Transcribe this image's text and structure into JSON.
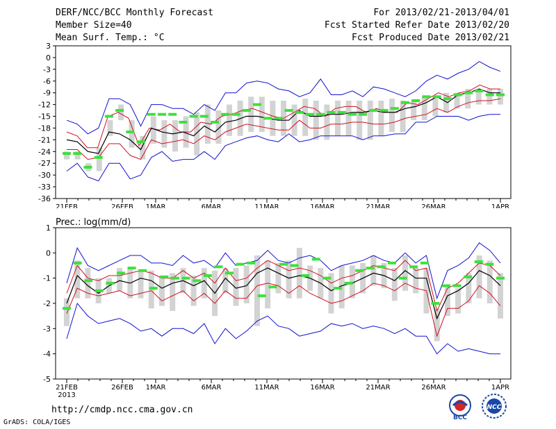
{
  "header": {
    "title": "DERF/NCC/BCC Monthly Forecast",
    "member_size": "Member Size=40",
    "variable": "Mean Surf. Temp.: °C",
    "period": "For 2013/02/21-2013/04/01",
    "started": "Fcst Started Refer Date 2013/02/20",
    "produced": "Fcst Produced Date 2013/02/21"
  },
  "footer": {
    "url": "http://cmdp.ncc.cma.gov.cn",
    "credit": "GrADS: COLA/IGES",
    "logo_bcc": "BCC",
    "logo_ncc": "NCC"
  },
  "colors": {
    "max_min": "#1010d0",
    "spread": "#d01020",
    "ensemble_mean": "#000000",
    "box": "#d3d3d3",
    "marker": "#3ce13c"
  },
  "chart_data": [
    {
      "type": "line",
      "title": "Mean Surf. Temp.: °C",
      "xlabel": "",
      "ylabel": "°C",
      "ylim": [
        -36,
        3
      ],
      "yticks": [
        3,
        0,
        -3,
        -6,
        -9,
        -12,
        -15,
        -18,
        -21,
        -24,
        -27,
        -30,
        -33,
        -36
      ],
      "x_tick_days": [
        1,
        6,
        9,
        14,
        19,
        24,
        29,
        34,
        40
      ],
      "x_tick_labels": [
        "21FEB",
        "26FEB",
        "1MAR",
        "6MAR",
        "11MAR",
        "16MAR",
        "21MAR",
        "26MAR",
        "1APR"
      ],
      "x_year_label": "2013",
      "days": 40,
      "series": [
        {
          "name": "max",
          "values": [
            -16,
            -17,
            -19.5,
            -18,
            -10.5,
            -10.5,
            -12,
            -17.5,
            -12,
            -12,
            -13,
            -13,
            -14.5,
            -12,
            -13.5,
            -9,
            -9,
            -6.5,
            -6,
            -6.5,
            -8,
            -8.5,
            -10,
            -9,
            -5.5,
            -9.5,
            -9.5,
            -8.5,
            -10,
            -7.5,
            -8,
            -9,
            -10,
            -8.5,
            -6,
            -4.5,
            -5.5,
            -4,
            -3,
            -1,
            -2.5,
            -3.5
          ]
        },
        {
          "name": "spread_upper",
          "values": [
            -19,
            -20,
            -23,
            -23,
            -15,
            -14,
            -15.5,
            -22.5,
            -18,
            -18.5,
            -17,
            -19,
            -19,
            -16.5,
            -17,
            -15,
            -14.5,
            -13.5,
            -13,
            -14,
            -15,
            -15.5,
            -14,
            -12.5,
            -13,
            -15,
            -13,
            -12.5,
            -12.5,
            -14,
            -13,
            -14,
            -14,
            -11.5,
            -12,
            -10.5,
            -9,
            -10,
            -9,
            -8.5,
            -7,
            -8,
            -8
          ]
        },
        {
          "name": "mean",
          "values": [
            -21,
            -21.5,
            -24,
            -24.5,
            -19,
            -19.5,
            -21,
            -23.5,
            -18,
            -19,
            -19.5,
            -19,
            -20,
            -17.5,
            -19,
            -16.5,
            -16,
            -15,
            -15,
            -15.5,
            -16,
            -16,
            -13.5,
            -15,
            -15,
            -14.5,
            -14.5,
            -14,
            -14,
            -13.5,
            -14,
            -14,
            -13,
            -12.5,
            -11.5,
            -10,
            -11.5,
            -9.5,
            -9,
            -8,
            -9,
            -9
          ]
        },
        {
          "name": "spread_lower",
          "values": [
            -23.5,
            -23.5,
            -26,
            -25.5,
            -22,
            -22,
            -25,
            -26,
            -21,
            -22,
            -21.5,
            -21,
            -22,
            -20,
            -21,
            -19,
            -18,
            -17,
            -17.5,
            -18,
            -18.5,
            -18.5,
            -16,
            -18,
            -18,
            -17,
            -17,
            -16.5,
            -16.5,
            -17,
            -17,
            -16.5,
            -15.5,
            -15,
            -14.5,
            -13,
            -14,
            -12.5,
            -11.5,
            -11,
            -11,
            -10.5
          ]
        },
        {
          "name": "min",
          "values": [
            -29,
            -27,
            -30.5,
            -31.5,
            -27,
            -27,
            -31,
            -30,
            -25.5,
            -24,
            -26.5,
            -26,
            -26,
            -24,
            -26,
            -22.5,
            -21.5,
            -20.5,
            -20,
            -21,
            -21.5,
            -19.5,
            -21.5,
            -21,
            -20,
            -20,
            -20,
            -20,
            -21,
            -20,
            -20,
            -19.5,
            -19.5,
            -16.5,
            -16.5,
            -15,
            -15,
            -15,
            -16,
            -15,
            -14.5,
            -14.5
          ]
        },
        {
          "name": "marker",
          "values": [
            -24.5,
            -24.5,
            -28,
            -25.5,
            -15,
            -13.5,
            -19,
            -21.5,
            -14.5,
            -14.5,
            -14.5,
            -16.5,
            -15,
            -15,
            -16.5,
            -14.5,
            -14.5,
            -13.5,
            -12,
            -15.5,
            -15.5,
            -13.5,
            -14,
            -14.5,
            -14.5,
            -14,
            -14,
            -14.5,
            -14.5,
            -13.5,
            -13.5,
            -13,
            -11.5,
            -11,
            -10,
            -10,
            -10.5,
            -9.5,
            -9,
            -8.5,
            -9.5,
            -9.5
          ]
        },
        {
          "name": "box_top",
          "values": [
            -24,
            -24,
            -27,
            -23,
            -16,
            -12,
            -16,
            -20,
            -15,
            -16,
            -16,
            -15,
            -14,
            -12,
            -13.5,
            -12,
            -11,
            -10,
            -10,
            -11,
            -11,
            -12,
            -10.5,
            -11,
            -12,
            -11,
            -11,
            -11,
            -11,
            -11,
            -10.5,
            -11,
            -11,
            -10,
            -10,
            -9,
            -9,
            -8,
            -8,
            -8,
            -8
          ]
        },
        {
          "name": "box_bottom",
          "values": [
            -26,
            -26,
            -29,
            -29,
            -20,
            -16,
            -23,
            -26,
            -22,
            -23,
            -24,
            -23,
            -25,
            -22,
            -22,
            -20,
            -20,
            -19,
            -19,
            -20,
            -20,
            -20,
            -20,
            -21,
            -21,
            -20,
            -20,
            -21,
            -21,
            -20,
            -19,
            -19,
            -16,
            -16,
            -15,
            -14,
            -13,
            -13,
            -12,
            -12,
            -12
          ]
        }
      ]
    },
    {
      "type": "line",
      "title": "Prec.: log(mm/d)",
      "xlabel": "",
      "ylabel": "log(mm/d)",
      "ylim": [
        -5,
        1
      ],
      "yticks": [
        1,
        0,
        -1,
        -2,
        -3,
        -4,
        -5
      ],
      "x_tick_days": [
        1,
        6,
        9,
        14,
        19,
        24,
        29,
        34,
        40
      ],
      "x_tick_labels": [
        "21FEB",
        "26FEB",
        "1MAR",
        "6MAR",
        "11MAR",
        "16MAR",
        "21MAR",
        "26MAR",
        "1APR"
      ],
      "x_year_label": "2013",
      "days": 40,
      "series": [
        {
          "name": "max",
          "values": [
            -1.2,
            0.2,
            -0.5,
            -0.7,
            -0.5,
            -0.3,
            -0.1,
            -0.1,
            -0.4,
            -0.4,
            -0.5,
            -0.1,
            -0.4,
            -0.3,
            -0.6,
            0,
            -0.5,
            -0.4,
            -0.3,
            0.1,
            -0.3,
            -0.4,
            -0.2,
            -0.1,
            -0.3,
            -0.7,
            -0.5,
            -0.4,
            -0.3,
            -0.1,
            -0.3,
            -0.4,
            0,
            -0.4,
            -0.1,
            -1.8,
            -0.7,
            -0.5,
            -0.2,
            0.4,
            0.1,
            -0.4
          ]
        },
        {
          "name": "spread_upper",
          "values": [
            -1.6,
            -0.5,
            -1,
            -1.1,
            -0.9,
            -0.9,
            -0.8,
            -0.7,
            -0.8,
            -1,
            -1,
            -0.7,
            -1,
            -0.8,
            -1.2,
            -0.6,
            -1.1,
            -1,
            -0.6,
            -0.3,
            -0.5,
            -0.7,
            -0.6,
            -0.7,
            -0.9,
            -1.2,
            -1,
            -0.9,
            -0.7,
            -0.5,
            -0.6,
            -0.7,
            -0.3,
            -0.7,
            -0.6,
            -2.3,
            -1.4,
            -1.2,
            -0.8,
            -0.4,
            -0.5,
            -0.9
          ]
        },
        {
          "name": "mean",
          "values": [
            -2,
            -0.9,
            -1.3,
            -1.6,
            -1.3,
            -1.1,
            -1.2,
            -1,
            -1.1,
            -1.4,
            -1.2,
            -1.1,
            -1.3,
            -1.1,
            -1.6,
            -1,
            -1.4,
            -1.3,
            -0.8,
            -0.6,
            -0.8,
            -1,
            -0.9,
            -1,
            -1.2,
            -1.5,
            -1.3,
            -1.2,
            -1,
            -0.8,
            -0.9,
            -1.1,
            -0.7,
            -1,
            -1,
            -2.6,
            -1.7,
            -1.5,
            -1.2,
            -0.7,
            -0.9,
            -1.3
          ]
        },
        {
          "name": "spread_lower",
          "values": [
            -2.4,
            -1.4,
            -1.6,
            -1.7,
            -1.6,
            -1.5,
            -1.7,
            -1.6,
            -1.5,
            -1.9,
            -1.7,
            -1.5,
            -1.9,
            -1.6,
            -2,
            -1.5,
            -1.8,
            -1.8,
            -1.3,
            -1.2,
            -1.3,
            -1.6,
            -1.3,
            -1.6,
            -1.8,
            -2,
            -1.9,
            -1.7,
            -1.5,
            -1.2,
            -1.3,
            -1.5,
            -1.2,
            -1.4,
            -1.5,
            -3.3,
            -2.2,
            -2.2,
            -1.9,
            -1.3,
            -1.6,
            -2.1
          ]
        },
        {
          "name": "min",
          "values": [
            -3.4,
            -2,
            -2.5,
            -2.8,
            -2.7,
            -2.6,
            -2.8,
            -3.1,
            -3,
            -3.3,
            -3,
            -3,
            -3.2,
            -2.8,
            -3.6,
            -3,
            -3.4,
            -3.1,
            -2.7,
            -2.5,
            -2.9,
            -3,
            -3.3,
            -3.2,
            -3.1,
            -2.8,
            -2.9,
            -2.8,
            -3,
            -2.9,
            -3,
            -3.2,
            -3,
            -3.3,
            -3.3,
            -4,
            -3.6,
            -3.9,
            -3.8,
            -3.9,
            -4,
            -4
          ]
        },
        {
          "name": "marker",
          "values": [
            -2.2,
            -0.4,
            -1.1,
            -1.5,
            -1.2,
            -0.8,
            -0.6,
            -0.7,
            -1.4,
            -0.95,
            -1,
            -1,
            -1.1,
            -0.9,
            -0.55,
            -0.8,
            -0.45,
            -0.4,
            -1.7,
            -1.35,
            -0.45,
            -0.5,
            -0.9,
            -0.25,
            -1,
            -1.4,
            -1.2,
            -0.7,
            -0.6,
            -0.55,
            -0.4,
            -1,
            -0.55,
            -0.4,
            -2,
            -1.3,
            -1.3,
            -0.95,
            -0.35,
            -0.45,
            -1
          ]
        },
        {
          "name": "box_top",
          "values": [
            -1.8,
            -0.3,
            -0.6,
            -1,
            -1,
            -0.6,
            -0.6,
            -0.7,
            -0.7,
            -0.9,
            -0.8,
            -0.6,
            -0.9,
            -0.6,
            -0.7,
            -0.6,
            -0.6,
            -0.5,
            -0.1,
            -0.3,
            -0.4,
            -0.3,
            0.2,
            -0.5,
            -0.6,
            -0.8,
            -0.5,
            -0.5,
            -0.4,
            -0.1,
            -0.4,
            -0.6,
            -0.1,
            -0.6,
            -0.6,
            -2.2,
            -1.3,
            -1.4,
            -0.8,
            -0.1,
            -0.3,
            -0.8
          ]
        },
        {
          "name": "box_bottom",
          "values": [
            -2.9,
            -1.8,
            -1.8,
            -2,
            -1.6,
            -1.5,
            -1.8,
            -1.8,
            -2.2,
            -2.1,
            -2.3,
            -1.6,
            -2.1,
            -1.8,
            -2.5,
            -1.6,
            -2.1,
            -2,
            -2.9,
            -2.2,
            -1.6,
            -1.8,
            -1.8,
            -1.5,
            -1.8,
            -2.4,
            -2.2,
            -1.8,
            -1.6,
            -1.3,
            -1.4,
            -1.9,
            -1.5,
            -1.6,
            -2.4,
            -3.5,
            -2.5,
            -2.4,
            -2,
            -1.8,
            -2,
            -2.6
          ]
        }
      ]
    }
  ]
}
